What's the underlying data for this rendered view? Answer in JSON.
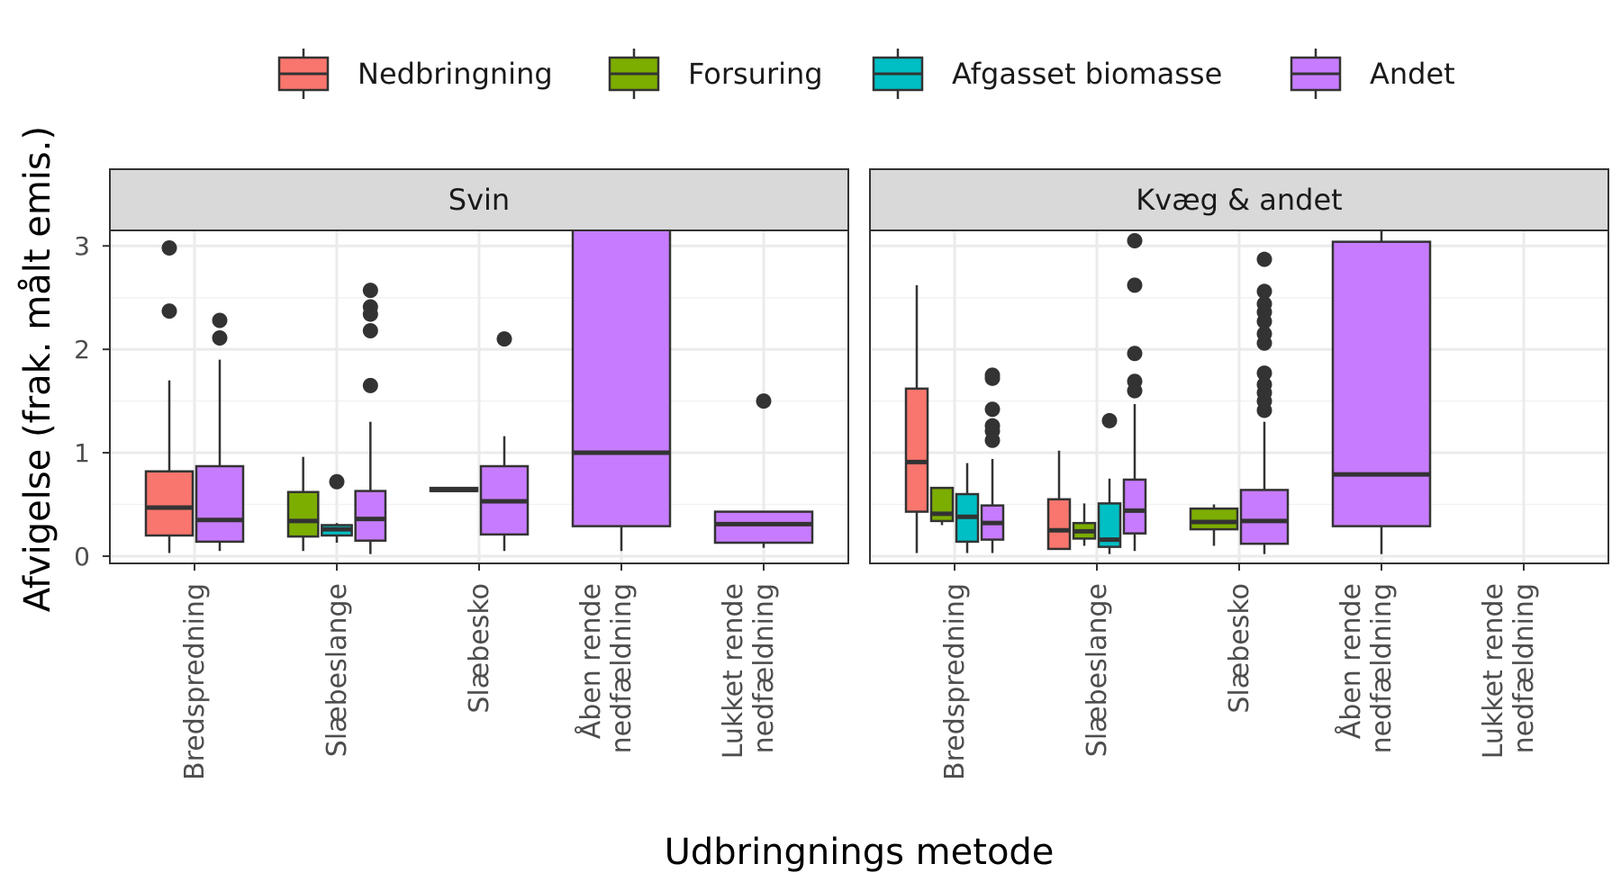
{
  "chart_data": {
    "type": "boxplot",
    "xlabel": "Udbringnings metode",
    "ylabel": "Afvigelse (frak. målt emis.)",
    "ylim": [
      -0.07,
      3.15
    ],
    "yticks": [
      "0",
      "1",
      "2",
      "3"
    ],
    "categories": [
      [
        "Bredspredning"
      ],
      [
        "Slæbeslange"
      ],
      [
        "Slæbesko"
      ],
      [
        "Åben rende",
        "nedfældning"
      ],
      [
        "Lukket rende",
        "nedfældning"
      ]
    ],
    "legend": {
      "position": "top",
      "entries": [
        {
          "name": "Nedbringning",
          "color": "#F8766D"
        },
        {
          "name": "Forsuring",
          "color": "#7CAE00"
        },
        {
          "name": "Afgasset biomasse",
          "color": "#00BFC4"
        },
        {
          "name": "Andet",
          "color": "#C77CFF"
        }
      ]
    },
    "panels": [
      {
        "title": "Svin",
        "boxes": [
          {
            "category": 0,
            "group": 0,
            "ngroups": 2,
            "series": 0,
            "whisker_low": 0.03,
            "q1": 0.2,
            "median": 0.47,
            "q3": 0.82,
            "whisker_high": 1.7,
            "outliers": [
              2.37,
              2.98
            ]
          },
          {
            "category": 0,
            "group": 1,
            "ngroups": 2,
            "series": 3,
            "whisker_low": 0.05,
            "q1": 0.14,
            "median": 0.35,
            "q3": 0.87,
            "whisker_high": 1.9,
            "outliers": [
              2.11,
              2.28
            ]
          },
          {
            "category": 1,
            "group": 0,
            "ngroups": 3,
            "series": 1,
            "whisker_low": 0.05,
            "q1": 0.19,
            "median": 0.34,
            "q3": 0.62,
            "whisker_high": 0.96,
            "outliers": []
          },
          {
            "category": 1,
            "group": 1,
            "ngroups": 3,
            "series": 2,
            "whisker_low": 0.13,
            "q1": 0.2,
            "median": 0.26,
            "q3": 0.3,
            "whisker_high": 0.32,
            "outliers": [
              0.72
            ]
          },
          {
            "category": 1,
            "group": 2,
            "ngroups": 3,
            "series": 3,
            "whisker_low": 0.02,
            "q1": 0.15,
            "median": 0.36,
            "q3": 0.63,
            "whisker_high": 1.3,
            "outliers": [
              1.65,
              2.18,
              2.34,
              2.41,
              2.57
            ]
          },
          {
            "category": 2,
            "group": 0,
            "ngroups": 2,
            "series": 1,
            "whisker_low": 0.63,
            "q1": 0.63,
            "median": 0.64,
            "q3": 0.66,
            "whisker_high": 0.66,
            "outliers": []
          },
          {
            "category": 2,
            "group": 1,
            "ngroups": 2,
            "series": 3,
            "whisker_low": 0.05,
            "q1": 0.21,
            "median": 0.53,
            "q3": 0.87,
            "whisker_high": 1.16,
            "outliers": [
              2.1
            ]
          },
          {
            "category": 3,
            "group": 0,
            "ngroups": 1,
            "series": 3,
            "whisker_low": 0.05,
            "q1": 0.29,
            "median": 1.0,
            "q3": 3.6,
            "whisker_high": 3.6,
            "outliers": []
          },
          {
            "category": 4,
            "group": 0,
            "ngroups": 1,
            "series": 3,
            "whisker_low": 0.08,
            "q1": 0.13,
            "median": 0.31,
            "q3": 0.43,
            "whisker_high": 0.43,
            "outliers": [
              1.5
            ]
          }
        ]
      },
      {
        "title": "Kvæg & andet",
        "boxes": [
          {
            "category": 0,
            "group": 0,
            "ngroups": 4,
            "series": 0,
            "whisker_low": 0.03,
            "q1": 0.43,
            "median": 0.91,
            "q3": 1.62,
            "whisker_high": 2.62,
            "outliers": []
          },
          {
            "category": 0,
            "group": 1,
            "ngroups": 4,
            "series": 1,
            "whisker_low": 0.3,
            "q1": 0.34,
            "median": 0.41,
            "q3": 0.66,
            "whisker_high": 0.66,
            "outliers": []
          },
          {
            "category": 0,
            "group": 2,
            "ngroups": 4,
            "series": 2,
            "whisker_low": 0.03,
            "q1": 0.14,
            "median": 0.38,
            "q3": 0.6,
            "whisker_high": 0.9,
            "outliers": []
          },
          {
            "category": 0,
            "group": 3,
            "ngroups": 4,
            "series": 3,
            "whisker_low": 0.03,
            "q1": 0.16,
            "median": 0.32,
            "q3": 0.49,
            "whisker_high": 0.94,
            "outliers": [
              1.12,
              1.21,
              1.26,
              1.42,
              1.72,
              1.75
            ]
          },
          {
            "category": 1,
            "group": 0,
            "ngroups": 4,
            "series": 0,
            "whisker_low": 0.07,
            "q1": 0.07,
            "median": 0.25,
            "q3": 0.55,
            "whisker_high": 1.02,
            "outliers": []
          },
          {
            "category": 1,
            "group": 1,
            "ngroups": 4,
            "series": 1,
            "whisker_low": 0.1,
            "q1": 0.17,
            "median": 0.24,
            "q3": 0.32,
            "whisker_high": 0.51,
            "outliers": []
          },
          {
            "category": 1,
            "group": 2,
            "ngroups": 4,
            "series": 2,
            "whisker_low": 0.02,
            "q1": 0.09,
            "median": 0.16,
            "q3": 0.51,
            "whisker_high": 0.75,
            "outliers": [
              1.31
            ]
          },
          {
            "category": 1,
            "group": 3,
            "ngroups": 4,
            "series": 3,
            "whisker_low": 0.05,
            "q1": 0.22,
            "median": 0.44,
            "q3": 0.74,
            "whisker_high": 1.47,
            "outliers": [
              1.6,
              1.69,
              1.96,
              2.62,
              3.05
            ]
          },
          {
            "category": 2,
            "group": 0,
            "ngroups": 2,
            "series": 1,
            "whisker_low": 0.1,
            "q1": 0.26,
            "median": 0.33,
            "q3": 0.46,
            "whisker_high": 0.5,
            "outliers": []
          },
          {
            "category": 2,
            "group": 1,
            "ngroups": 2,
            "series": 3,
            "whisker_low": 0.02,
            "q1": 0.12,
            "median": 0.34,
            "q3": 0.64,
            "whisker_high": 1.3,
            "outliers": [
              1.41,
              1.5,
              1.58,
              1.66,
              1.77,
              2.06,
              2.15,
              2.27,
              2.36,
              2.44,
              2.56,
              2.87
            ]
          },
          {
            "category": 3,
            "group": 0,
            "ngroups": 1,
            "series": 3,
            "whisker_low": 0.02,
            "q1": 0.29,
            "median": 0.79,
            "q3": 3.04,
            "whisker_high": 3.15,
            "outliers": []
          }
        ]
      }
    ]
  }
}
